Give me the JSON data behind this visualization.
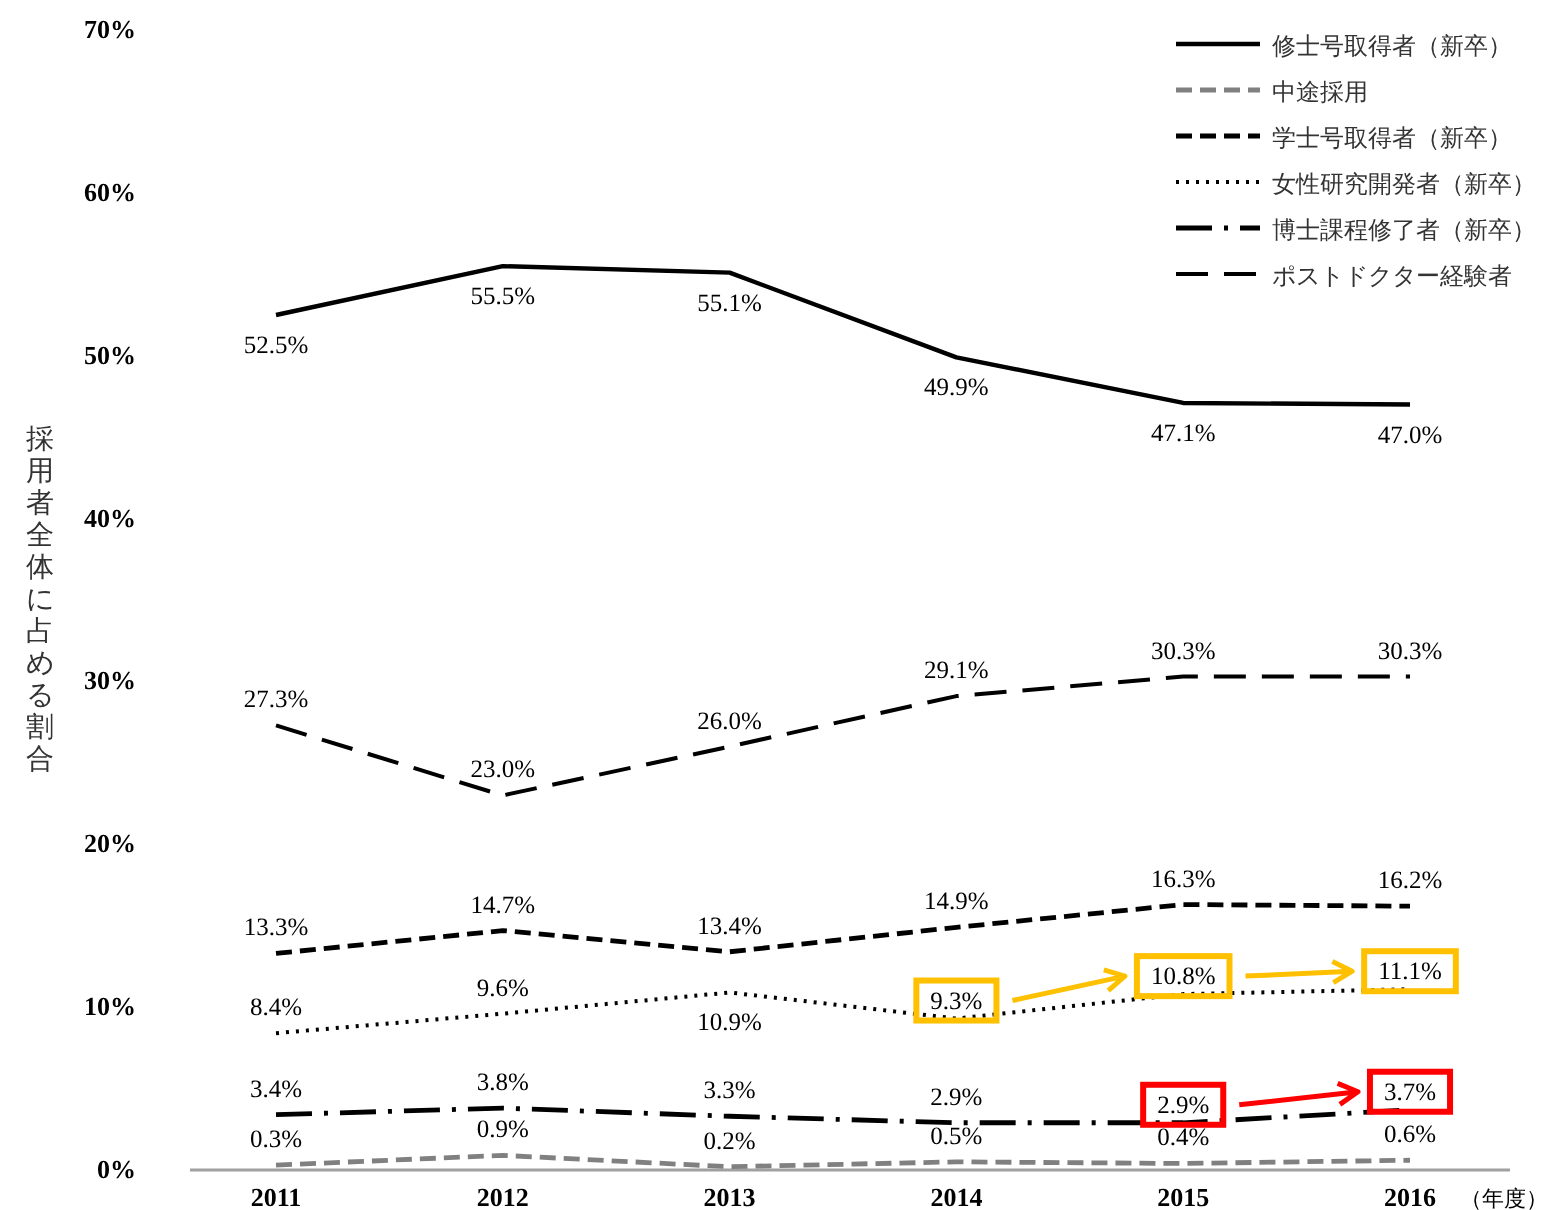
{
  "chart_data": {
    "type": "line",
    "ylabel": "採用者全体に占める割合",
    "xlabel": "（年度）",
    "categories": [
      "2011",
      "2012",
      "2013",
      "2014",
      "2015",
      "2016"
    ],
    "ylim": [
      0,
      70
    ],
    "yticks": [
      {
        "value": 0,
        "label": "0%"
      },
      {
        "value": 10,
        "label": "10%"
      },
      {
        "value": 20,
        "label": "20%"
      },
      {
        "value": 30,
        "label": "30%"
      },
      {
        "value": 40,
        "label": "40%"
      },
      {
        "value": 50,
        "label": "50%"
      },
      {
        "value": 60,
        "label": "60%"
      },
      {
        "value": 70,
        "label": "70%"
      }
    ],
    "legend": "top right",
    "marker": "none",
    "series": [
      {
        "name": "修士号取得者（新卒）",
        "color": "#000000",
        "line_style": "solid",
        "values": [
          52.5,
          55.5,
          55.1,
          49.9,
          47.1,
          47.0
        ],
        "value_labels": [
          "52.5%",
          "55.5%",
          "55.1%",
          "49.9%",
          "47.1%",
          "47.0%"
        ]
      },
      {
        "name": "中途採用",
        "color": "#808080",
        "line_style": "dashed",
        "values": [
          0.3,
          0.9,
          0.2,
          0.5,
          0.4,
          0.6
        ],
        "value_labels": [
          "0.3%",
          "0.9%",
          "0.2%",
          "0.5%",
          "0.4%",
          "0.6%"
        ]
      },
      {
        "name": "学士号取得者（新卒）",
        "color": "#000000",
        "line_style": "dashed",
        "values": [
          13.3,
          14.7,
          13.4,
          14.9,
          16.3,
          16.2
        ],
        "value_labels": [
          "13.3%",
          "14.7%",
          "13.4%",
          "14.9%",
          "16.3%",
          "16.2%"
        ]
      },
      {
        "name": "女性研究開発者（新卒）",
        "color": "#000000",
        "line_style": "dotted",
        "values": [
          8.4,
          9.6,
          10.9,
          9.3,
          10.8,
          11.1
        ],
        "value_labels": [
          "8.4%",
          "9.6%",
          "10.9%",
          null,
          null,
          null
        ]
      },
      {
        "name": "博士課程修了者（新卒）",
        "color": "#000000",
        "line_style": "dashdot",
        "values": [
          3.4,
          3.8,
          3.3,
          2.9,
          2.9,
          3.7
        ],
        "value_labels": [
          "3.4%",
          "3.8%",
          "3.3%",
          "2.9%",
          null,
          null
        ]
      },
      {
        "name": "ポストドクター経験者",
        "color": "#000000",
        "line_style": "longdash",
        "values": [
          27.3,
          23.0,
          26.0,
          29.1,
          30.3,
          30.3
        ],
        "value_labels": [
          "27.3%",
          "23.0%",
          "26.0%",
          "29.1%",
          "30.3%",
          "30.3%"
        ]
      }
    ],
    "annotations": [
      {
        "text": "9.3%",
        "x": "2014",
        "y": 9.3
      },
      {
        "text": "10.8%",
        "x": "2015",
        "y": 10.8
      },
      {
        "text": "11.1%",
        "x": "2016",
        "y": 11.1
      },
      {
        "text": "2.9%",
        "x": "2015",
        "y": 2.9
      },
      {
        "text": "3.7%",
        "x": "2016",
        "y": 3.7
      }
    ]
  }
}
